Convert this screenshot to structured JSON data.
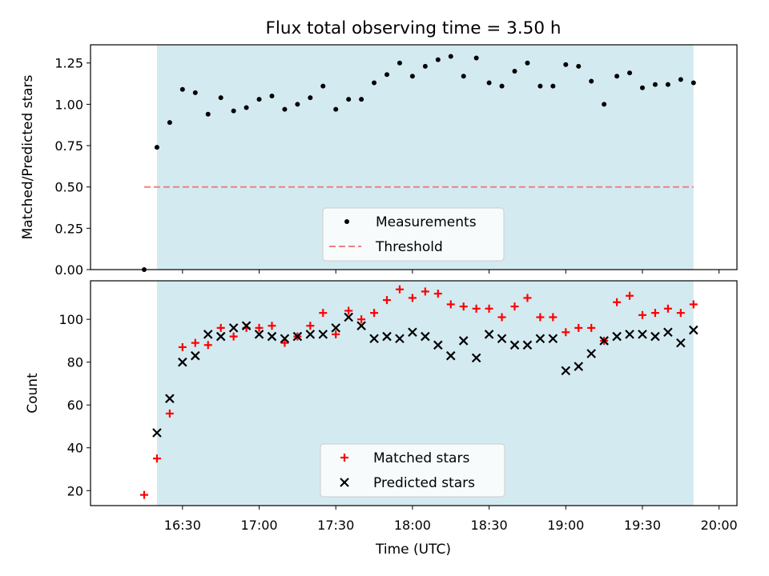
{
  "title": "Flux total observing time = 3.50 h",
  "colors": {
    "span": "#d4eaf1",
    "measure": "#000000",
    "threshold": "#f08080",
    "matched": "#ff0000",
    "predicted": "#000000"
  },
  "x_axis": {
    "label": "Time (UTC)",
    "ticks": [
      "16:30",
      "17:00",
      "17:30",
      "18:00",
      "18:30",
      "19:00",
      "19:30",
      "20:00"
    ],
    "tick_minutes": [
      990,
      1020,
      1050,
      1080,
      1110,
      1140,
      1170,
      1200
    ],
    "range_minutes": [
      954,
      1207
    ],
    "span_minutes": [
      980,
      1190
    ]
  },
  "chart_data": [
    {
      "type": "scatter",
      "ylabel": "Matched/Predicted stars",
      "ylim": [
        0,
        1.36
      ],
      "yticks": [
        "0.00",
        "0.25",
        "0.50",
        "0.75",
        "1.00",
        "1.25"
      ],
      "ytick_values": [
        0,
        0.25,
        0.5,
        0.75,
        1.0,
        1.25
      ],
      "threshold": {
        "value": 0.5,
        "x_range": [
          975,
          1190
        ]
      },
      "legend": [
        "Measurements",
        "Threshold"
      ],
      "legend_position": "lower center",
      "series": [
        {
          "name": "Measurements",
          "x": [
            975,
            980,
            985,
            990,
            995,
            1000,
            1005,
            1010,
            1015,
            1020,
            1025,
            1030,
            1035,
            1040,
            1045,
            1050,
            1055,
            1060,
            1065,
            1070,
            1075,
            1080,
            1085,
            1090,
            1095,
            1100,
            1105,
            1110,
            1115,
            1120,
            1125,
            1130,
            1135,
            1140,
            1145,
            1150,
            1155,
            1160,
            1165,
            1170,
            1175,
            1180,
            1185,
            1190
          ],
          "y": [
            0.0,
            0.74,
            0.89,
            1.09,
            1.07,
            0.94,
            1.04,
            0.96,
            0.98,
            1.03,
            1.05,
            0.97,
            1.0,
            1.04,
            1.11,
            0.97,
            1.03,
            1.03,
            1.13,
            1.18,
            1.25,
            1.17,
            1.23,
            1.27,
            1.29,
            1.17,
            1.28,
            1.13,
            1.11,
            1.2,
            1.25,
            1.11,
            1.11,
            1.24,
            1.23,
            1.14,
            1.0,
            1.17,
            1.19,
            1.1,
            1.12,
            1.12,
            1.15,
            1.13
          ]
        }
      ]
    },
    {
      "type": "scatter",
      "ylabel": "Count",
      "ylim": [
        13,
        118
      ],
      "yticks": [
        "20",
        "40",
        "60",
        "80",
        "100"
      ],
      "ytick_values": [
        20,
        40,
        60,
        80,
        100
      ],
      "legend": [
        "Matched stars",
        "Predicted stars"
      ],
      "legend_position": "lower center",
      "series": [
        {
          "name": "Matched stars",
          "x": [
            975,
            980,
            985,
            990,
            995,
            1000,
            1005,
            1010,
            1015,
            1020,
            1025,
            1030,
            1035,
            1040,
            1045,
            1050,
            1055,
            1060,
            1065,
            1070,
            1075,
            1080,
            1085,
            1090,
            1095,
            1100,
            1105,
            1110,
            1115,
            1120,
            1125,
            1130,
            1135,
            1140,
            1145,
            1150,
            1155,
            1160,
            1165,
            1170,
            1175,
            1180,
            1185,
            1190
          ],
          "y": [
            18,
            35,
            56,
            87,
            89,
            88,
            96,
            92,
            96,
            96,
            97,
            89,
            92,
            97,
            103,
            93,
            104,
            100,
            103,
            109,
            114,
            110,
            113,
            112,
            107,
            106,
            105,
            105,
            101,
            106,
            110,
            101,
            101,
            94,
            96,
            96,
            90,
            108,
            111,
            102,
            103,
            105,
            103,
            107
          ]
        },
        {
          "name": "Predicted stars",
          "x": [
            980,
            985,
            990,
            995,
            1000,
            1005,
            1010,
            1015,
            1020,
            1025,
            1030,
            1035,
            1040,
            1045,
            1050,
            1055,
            1060,
            1065,
            1070,
            1075,
            1080,
            1085,
            1090,
            1095,
            1100,
            1105,
            1110,
            1115,
            1120,
            1125,
            1130,
            1135,
            1140,
            1145,
            1150,
            1155,
            1160,
            1165,
            1170,
            1175,
            1180,
            1185,
            1190
          ],
          "y": [
            47,
            63,
            80,
            83,
            93,
            92,
            96,
            97,
            93,
            92,
            91,
            92,
            93,
            93,
            96,
            101,
            97,
            91,
            92,
            91,
            94,
            92,
            88,
            83,
            90,
            82,
            93,
            91,
            88,
            88,
            91,
            91,
            76,
            78,
            84,
            90,
            92,
            93,
            93,
            92,
            94,
            89,
            95
          ]
        }
      ]
    }
  ]
}
